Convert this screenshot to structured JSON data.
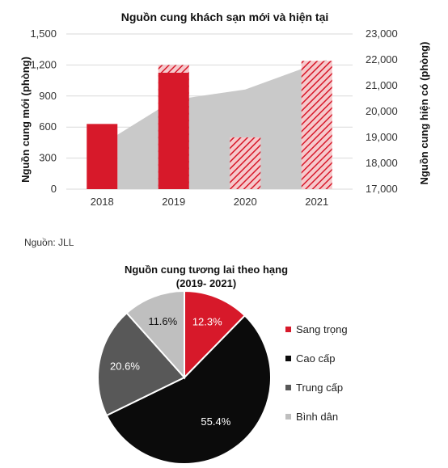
{
  "colors": {
    "red": "#d7192a",
    "area_gray": "#c9c9c9",
    "black": "#0b0b0b",
    "dark_gray": "#585858",
    "light_gray": "#bfbfbf",
    "white": "#ffffff"
  },
  "source_note": "Nguồn: JLL",
  "chart_data": [
    {
      "type": "bar",
      "title": "Nguồn cung khách sạn mới và hiện tại",
      "ylabel": "Nguồn cung mới (phòng)",
      "y2label": "Nguồn cung hiện có (phòng)",
      "categories": [
        "2018",
        "2019",
        "2020",
        "2021"
      ],
      "ylim": [
        0,
        1500
      ],
      "yticks": [
        "0",
        "300",
        "600",
        "900",
        "1,200",
        "1,500"
      ],
      "y2lim": [
        17000,
        23000
      ],
      "y2ticks": [
        "17,000",
        "18,000",
        "19,000",
        "20,000",
        "21,000",
        "22,000",
        "23,000"
      ],
      "series": [
        {
          "kind": "bar",
          "axis": "left",
          "color": "#d7192a",
          "values": [
            630,
            1125,
            0,
            0
          ]
        },
        {
          "kind": "bar-hatched",
          "axis": "left",
          "color": "#d7192a",
          "values": [
            0,
            1200,
            500,
            1240
          ]
        },
        {
          "kind": "area",
          "axis": "right",
          "color": "#c9c9c9",
          "values": [
            19100,
            20450,
            20850,
            22000
          ]
        }
      ],
      "grid": true
    },
    {
      "type": "pie",
      "title_line1": "Nguồn cung tương lai theo hạng",
      "title_line2": "(2019- 2021)",
      "slices": [
        {
          "label": "Sang trọng",
          "value": 12.3,
          "text": "12.3%",
          "color": "#d7192a",
          "label_color": "#ffffff"
        },
        {
          "label": "Cao cấp",
          "value": 55.4,
          "text": "55.4%",
          "color": "#0b0b0b",
          "label_color": "#ffffff"
        },
        {
          "label": "Trung cấp",
          "value": 20.6,
          "text": "20.6%",
          "color": "#585858",
          "label_color": "#ffffff"
        },
        {
          "label": "Bình dân",
          "value": 11.6,
          "text": "11.6%",
          "color": "#bfbfbf",
          "label_color": "#111111"
        }
      ],
      "legend_position": "right"
    }
  ]
}
